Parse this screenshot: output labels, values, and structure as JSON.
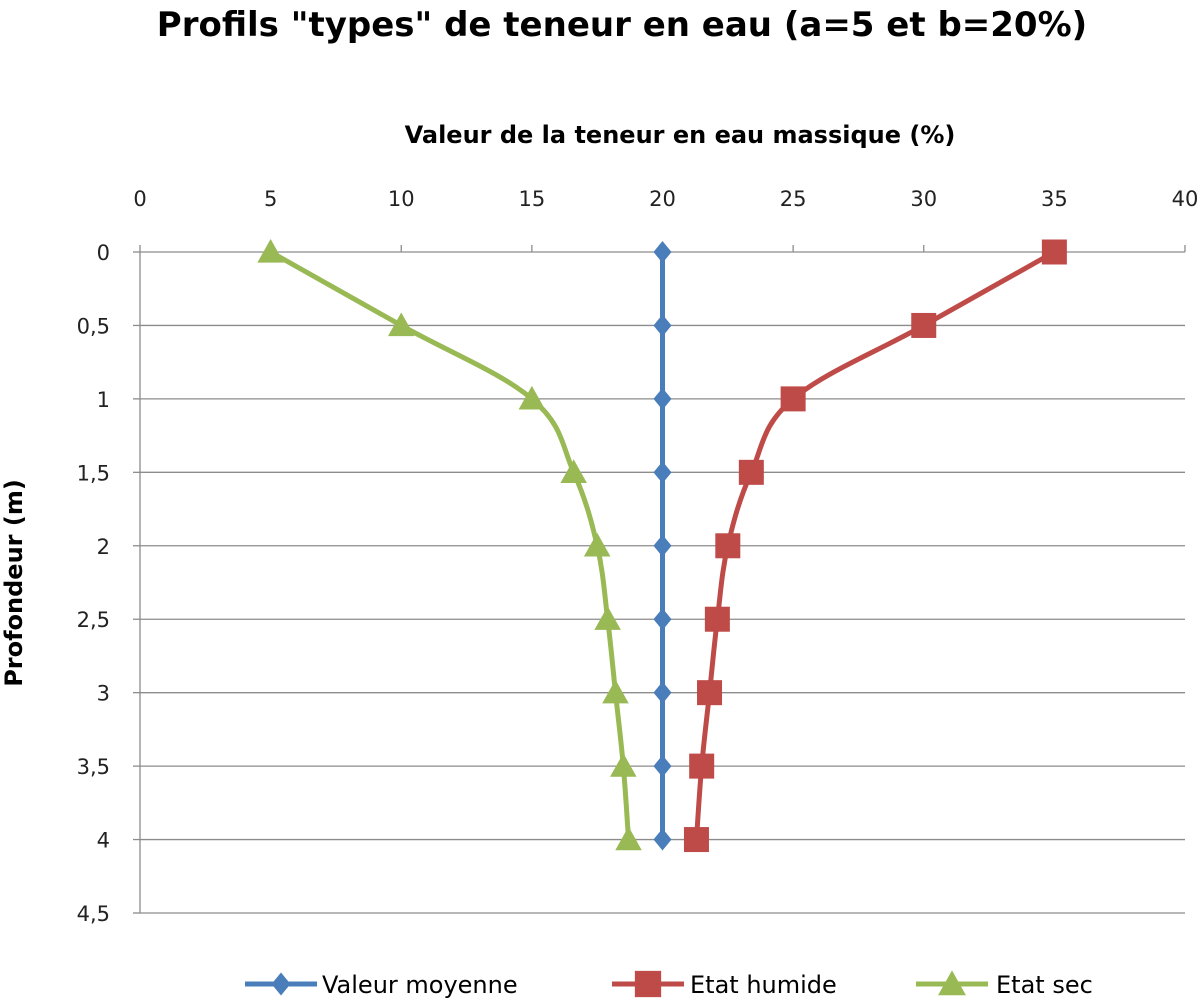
{
  "chart_data": {
    "type": "line",
    "title": "Profils \"types\" de teneur en eau (a=5 et b=20%)",
    "xlabel": "Valeur de la teneur en eau massique (%)",
    "ylabel": "Profondeur (m)",
    "xlim": [
      0,
      40
    ],
    "ylim": [
      0,
      4.5
    ],
    "y_inverted": true,
    "x_axis_position": "top",
    "x_ticks": [
      0,
      5,
      10,
      15,
      20,
      25,
      30,
      35,
      40
    ],
    "x_tick_labels": [
      "0",
      "5",
      "10",
      "15",
      "20",
      "25",
      "30",
      "35",
      "40"
    ],
    "y_ticks": [
      0,
      0.5,
      1,
      1.5,
      2,
      2.5,
      3,
      3.5,
      4,
      4.5
    ],
    "y_tick_labels": [
      "0",
      "0,5",
      "1",
      "1,5",
      "2",
      "2,5",
      "3",
      "3,5",
      "4",
      "4,5"
    ],
    "grid": "horizontal",
    "legend_position": "bottom",
    "y": [
      0,
      0.5,
      1,
      1.5,
      2,
      2.5,
      3,
      3.5,
      4
    ],
    "series": [
      {
        "name": "Valeur moyenne",
        "color": "#4a7ebb",
        "marker": "diamond",
        "values": [
          20,
          20,
          20,
          20,
          20,
          20,
          20,
          20,
          20
        ]
      },
      {
        "name": "Etat humide",
        "color": "#be4b48",
        "marker": "square",
        "values": [
          35,
          30,
          25,
          23.4,
          22.5,
          22.1,
          21.8,
          21.5,
          21.3
        ]
      },
      {
        "name": "Etat sec",
        "color": "#98b954",
        "marker": "triangle",
        "values": [
          5,
          10,
          15,
          16.6,
          17.5,
          17.9,
          18.2,
          18.5,
          18.7
        ]
      }
    ]
  }
}
